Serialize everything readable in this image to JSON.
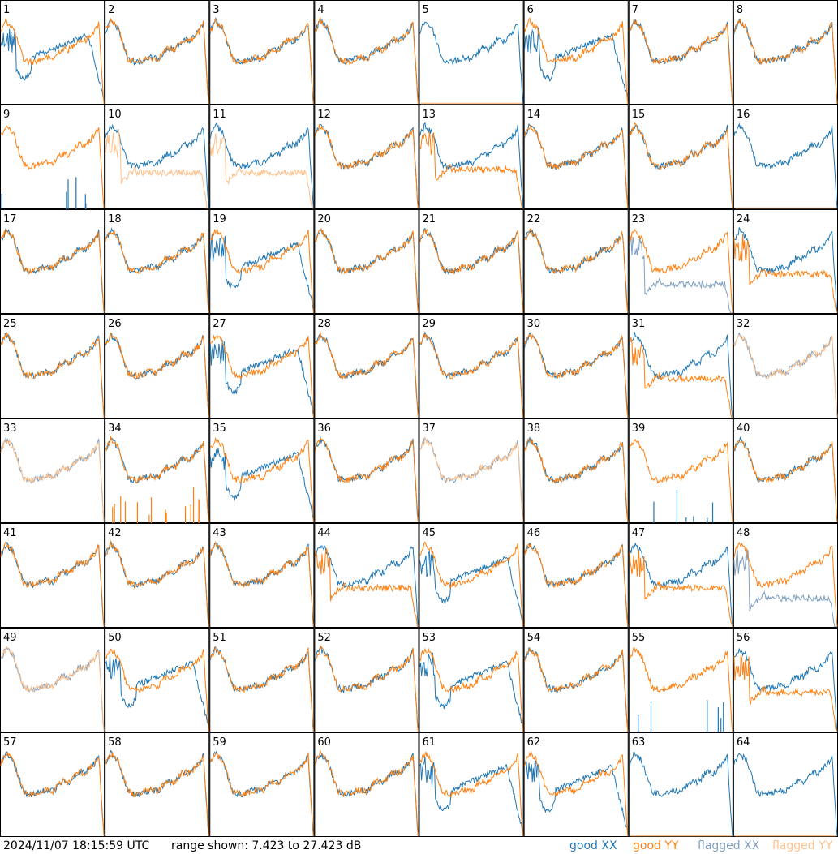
{
  "chart_data": {
    "type": "line",
    "panel_count": 64,
    "panel_labels": [
      "1",
      "2",
      "3",
      "4",
      "5",
      "6",
      "7",
      "8",
      "9",
      "10",
      "11",
      "12",
      "13",
      "14",
      "15",
      "16",
      "17",
      "18",
      "19",
      "20",
      "21",
      "22",
      "23",
      "24",
      "25",
      "26",
      "27",
      "28",
      "29",
      "30",
      "31",
      "32",
      "33",
      "34",
      "35",
      "36",
      "37",
      "38",
      "39",
      "40",
      "41",
      "42",
      "43",
      "44",
      "45",
      "46",
      "47",
      "48",
      "49",
      "50",
      "51",
      "52",
      "53",
      "54",
      "55",
      "56",
      "57",
      "58",
      "59",
      "60",
      "61",
      "62",
      "63",
      "64"
    ],
    "y_range_db": [
      7.423,
      27.423
    ],
    "grid": false,
    "series": [
      "good XX",
      "good YY",
      "flagged XX",
      "flagged YY"
    ],
    "colors": {
      "good_xx": "#1f77b4",
      "good_yy": "#ff7f0e",
      "flagged_xx": "#7f9fbf",
      "flagged_yy": "#ffc08a"
    },
    "panels": {
      "normal": [
        2,
        3,
        4,
        7,
        12,
        14,
        15,
        17,
        18,
        20,
        21,
        22,
        25,
        26,
        28,
        29,
        30,
        36,
        38,
        40,
        41,
        42,
        43,
        46,
        51,
        52,
        54,
        57,
        58,
        59,
        60
      ],
      "xx_low_divergent": [
        1,
        6,
        19,
        27,
        35,
        45,
        50,
        53,
        61,
        62
      ],
      "yy_low_divergent": [
        13,
        24,
        31,
        44,
        47,
        56
      ],
      "yy_missing_xx_only": [
        5,
        16,
        63,
        64
      ],
      "xx_missing_yy_only": [
        9,
        39,
        55
      ],
      "xx_flagged": [
        23,
        48
      ],
      "yy_flagged": [
        10,
        11
      ],
      "both_flagged": [
        32,
        33,
        37,
        49
      ],
      "yy_spiky": [
        34
      ],
      "edge_drop": [
        1,
        6,
        8,
        19,
        27,
        35,
        44,
        45,
        53,
        61
      ]
    }
  },
  "footer": {
    "timestamp": "2024/11/07 18:15:59 UTC",
    "range_text": "range shown: 7.423 to 27.423 dB",
    "legend_good_xx": "good XX",
    "legend_good_yy": "good YY",
    "legend_flagged_xx": "flagged XX",
    "legend_flagged_yy": "flagged YY"
  }
}
